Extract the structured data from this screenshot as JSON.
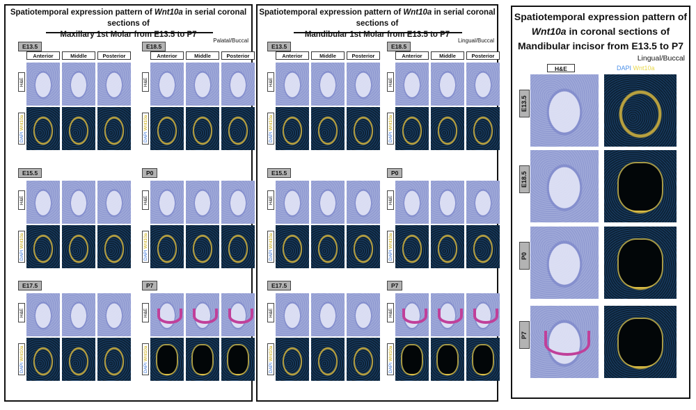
{
  "panel1": {
    "title_pre": "Spatiotemporal expression pattern of ",
    "gene": "Wnt10a",
    "title_mid": " in serial coronal sections of",
    "title_line2": "Maxillary 1st Molar from E13.5 to P7",
    "orientation": "Palatal/Buccal",
    "stages_left": [
      "E13.5",
      "E15.5",
      "E17.5"
    ],
    "stages_right": [
      "E18.5",
      "P0",
      "P7"
    ]
  },
  "panel2": {
    "title_pre": "Spatiotemporal expression pattern of ",
    "gene": "Wnt10a",
    "title_mid": " in serial coronal sections of",
    "title_line2": "Mandibular 1st Molar from E13.5 to P7",
    "orientation": "Lingual/Buccal",
    "stages_left": [
      "E13.5",
      "E15.5",
      "E17.5"
    ],
    "stages_right": [
      "E18.5",
      "P0",
      "P7"
    ]
  },
  "panel3": {
    "title_line1": "Spatiotemporal expression pattern of",
    "gene": "Wnt10a",
    "title_line2_rest": " in coronal sections of",
    "title_line3": "Mandibular incisor from E13.5 to P7",
    "orientation": "Lingual/Buccal",
    "col_he": "H&E",
    "col_dapi": "DAPI",
    "col_wnt": "Wnt10a",
    "stages": [
      "E13.5",
      "E18.5",
      "P0",
      "P7"
    ]
  },
  "columns": [
    "Anterior",
    "Middle",
    "Posterior"
  ],
  "row_he": "H&E",
  "row_dapi": "DAPI",
  "row_wnt": "Wnt10a"
}
